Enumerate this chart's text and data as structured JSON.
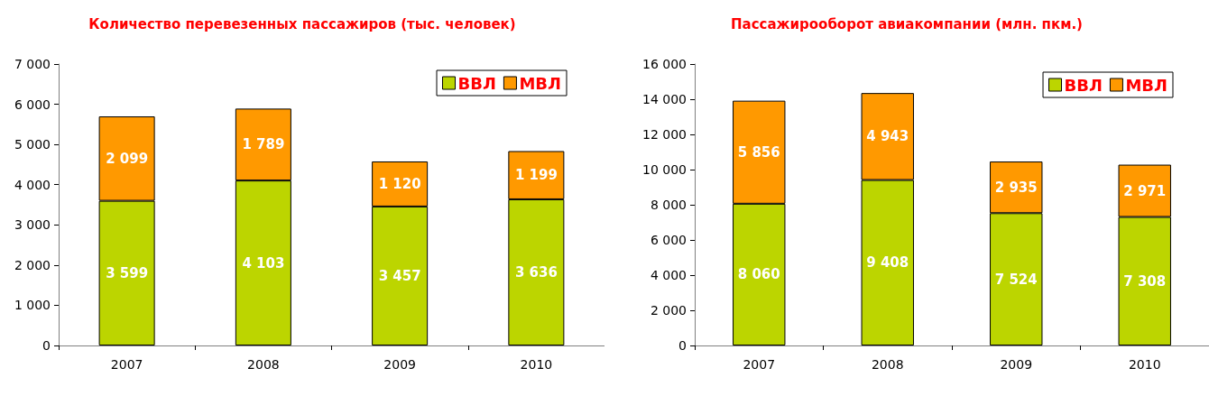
{
  "chart_data": [
    {
      "type": "bar",
      "title": "Количество перевезенных пассажиров (тыс. человек)",
      "categories": [
        "2007",
        "2008",
        "2009",
        "2010"
      ],
      "stacked": true,
      "series": [
        {
          "name": "ВВЛ",
          "color": "#bcd500",
          "values": [
            3599,
            4103,
            3457,
            3636
          ],
          "value_labels": [
            "3 599",
            "4 103",
            "3 457",
            "3 636"
          ]
        },
        {
          "name": "МВЛ",
          "color": "#ff9900",
          "values": [
            2099,
            1789,
            1120,
            1199
          ],
          "value_labels": [
            "2 099",
            "1 789",
            "1 120",
            "1 199"
          ]
        }
      ],
      "ylim": [
        0,
        7000
      ],
      "yticks": [
        0,
        {
          "value": 1000,
          "label": "1 000"
        },
        {
          "value": 2000,
          "label": "2 000"
        },
        {
          "value": 3000,
          "label": "3 000"
        },
        {
          "value": 4000,
          "label": "4 000"
        },
        {
          "value": 5000,
          "label": "5 000"
        },
        {
          "value": 6000,
          "label": "6 000"
        },
        {
          "value": 7000,
          "label": "7 000"
        }
      ],
      "legend": "top right"
    },
    {
      "type": "bar",
      "title": "Пассажирооборот авиакомпании (млн. пкм.)",
      "categories": [
        "2007",
        "2008",
        "2009",
        "2010"
      ],
      "stacked": true,
      "series": [
        {
          "name": "ВВЛ",
          "color": "#bcd500",
          "values": [
            8060,
            9408,
            7524,
            7308
          ],
          "value_labels": [
            "8 060",
            "9 408",
            "7 524",
            "7 308"
          ]
        },
        {
          "name": "МВЛ",
          "color": "#ff9900",
          "values": [
            5856,
            4943,
            2935,
            2971
          ],
          "value_labels": [
            "5 856",
            "4 943",
            "2 935",
            "2 971"
          ]
        }
      ],
      "ylim": [
        0,
        16000
      ],
      "yticks": [
        0,
        {
          "value": 2000,
          "label": "2 000"
        },
        {
          "value": 4000,
          "label": "4 000"
        },
        {
          "value": 6000,
          "label": "6 000"
        },
        {
          "value": 8000,
          "label": "8 000"
        },
        {
          "value": 10000,
          "label": "10 000"
        },
        {
          "value": 12000,
          "label": "12 000"
        },
        {
          "value": 14000,
          "label": "14 000"
        },
        {
          "value": 16000,
          "label": "16 000"
        }
      ],
      "legend": "top right"
    }
  ]
}
